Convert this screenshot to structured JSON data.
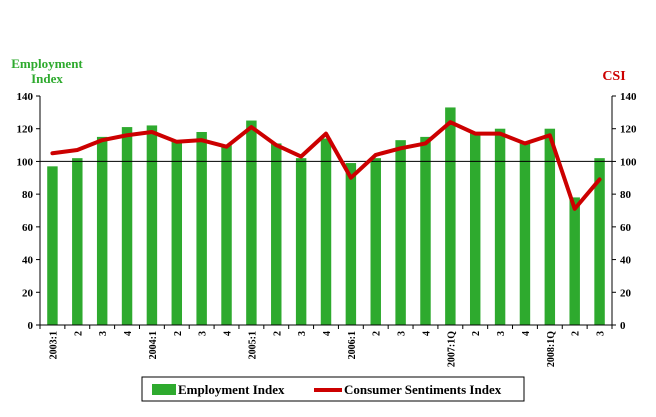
{
  "chart_data": {
    "type": "bar",
    "left_axis_title": [
      "Employment",
      "Index"
    ],
    "right_axis_title": "CSI",
    "categories": [
      "2003:1",
      "2",
      "3",
      "4",
      "2004:1",
      "2",
      "3",
      "4",
      "2005:1",
      "2",
      "3",
      "4",
      "2006:1",
      "2",
      "3",
      "4",
      "2007:1Q",
      "2",
      "3",
      "4",
      "2008:1Q",
      "2",
      "3"
    ],
    "ylim": [
      0,
      140
    ],
    "yticks": [
      0,
      20,
      40,
      60,
      80,
      100,
      120,
      140
    ],
    "reference_line": 100,
    "grid": false,
    "legend_position": "bottom",
    "series": [
      {
        "name": "Employment Index",
        "type": "bar",
        "axis": "left",
        "color": "#2eaa2e",
        "values": [
          97,
          102,
          115,
          121,
          122,
          113,
          118,
          110,
          125,
          111,
          102,
          114,
          99,
          102,
          113,
          115,
          133,
          118,
          120,
          112,
          120,
          78,
          102
        ]
      },
      {
        "name": "Consumer Sentiments Index",
        "type": "line",
        "axis": "right",
        "color": "#cc0000",
        "values": [
          105,
          107,
          113,
          116,
          118,
          112,
          113,
          109,
          121,
          110,
          103,
          117,
          90,
          104,
          108,
          111,
          124,
          117,
          117,
          111,
          116,
          71,
          89
        ]
      }
    ]
  }
}
